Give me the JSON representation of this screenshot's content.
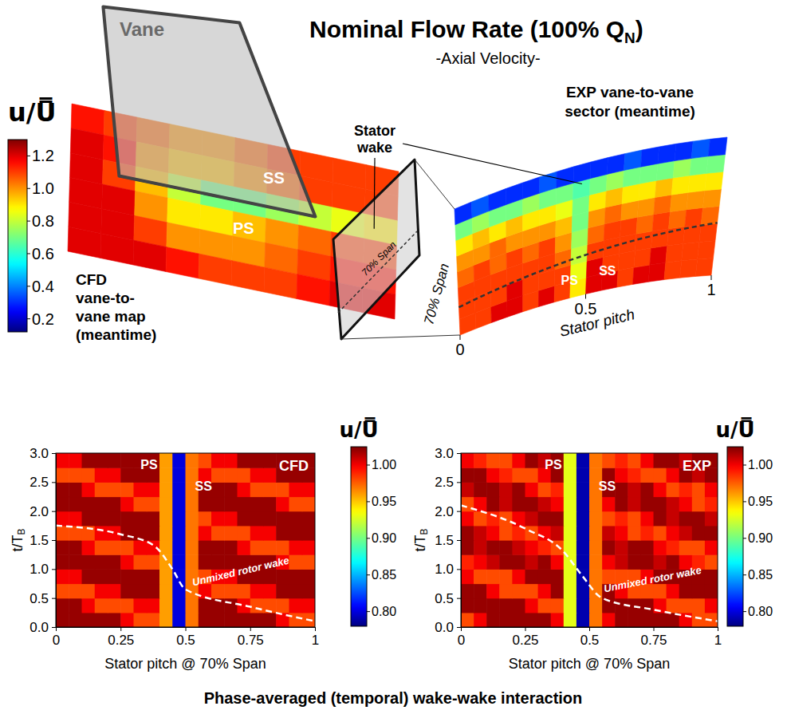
{
  "title": {
    "text": "Nominal Flow Rate (100% Q",
    "subscript": "N",
    "end": ")"
  },
  "subtitle": "-Axial Velocity-",
  "footer": "Phase-averaged (temporal) wake-wake interaction",
  "diagram": {
    "colorbar": {
      "label": "u/U̿",
      "range": [
        0.12,
        1.3
      ],
      "ticks": [
        0.2,
        0.4,
        0.6,
        0.8,
        {
          "value": 1,
          "label": "1.0"
        },
        1.2
      ]
    },
    "vane": "Vane",
    "ss": "SS",
    "ps": "PS",
    "cfd_map": {
      "label": [
        "CFD",
        "vane-to-",
        "vane map",
        "(meantime)"
      ],
      "z": [
        [
          1.15,
          1.1,
          1.05,
          1.0,
          1.0,
          1.05,
          1.1,
          1.1,
          1.1,
          1.1
        ],
        [
          1.2,
          1.15,
          1.0,
          0.95,
          0.95,
          1.0,
          1.05,
          1.1,
          1.1,
          1.1
        ],
        [
          1.2,
          1.1,
          0.95,
          0.8,
          0.7,
          0.7,
          0.75,
          0.8,
          0.85,
          0.9
        ],
        [
          1.2,
          1.2,
          1.0,
          0.9,
          0.9,
          0.95,
          1.0,
          1.05,
          1.1,
          1.1
        ],
        [
          1.2,
          1.2,
          1.1,
          1.0,
          1.0,
          1.0,
          1.05,
          1.1,
          1.15,
          1.15
        ],
        [
          1.2,
          1.2,
          1.2,
          1.15,
          1.1,
          1.1,
          1.1,
          1.15,
          1.2,
          1.2
        ]
      ]
    },
    "exit_plane_label": "70% Span",
    "stator_wake": [
      "Stator",
      "wake"
    ],
    "exp_sector": {
      "label": [
        "EXP vane-to-vane",
        "sector (meantime)"
      ],
      "pitch_ticks": [
        0,
        0.5,
        1
      ],
      "pitch_label": "Stator pitch",
      "span_label": "70% Span",
      "ps": "PS",
      "ss": "SS",
      "z": [
        [
          1.1,
          1.1,
          1.2,
          1.2,
          1.1,
          1.2,
          1.1,
          0.9,
          1.2,
          1.2,
          1.1,
          1.2,
          1.2,
          1.1,
          1.1,
          1.1
        ],
        [
          1.1,
          1.1,
          1.1,
          1.2,
          1.1,
          1.1,
          1.1,
          0.85,
          1.2,
          1.1,
          1.1,
          1.1,
          1.2,
          1.1,
          1.1,
          1.1
        ],
        [
          1.1,
          1.1,
          1.1,
          1.1,
          1.1,
          1.1,
          1.05,
          0.8,
          1.1,
          1.1,
          1.1,
          1.1,
          1.1,
          1.1,
          1.1,
          1.1
        ],
        [
          1.05,
          1.1,
          1.05,
          1.1,
          1.05,
          1.1,
          1.0,
          0.75,
          1.05,
          1.1,
          1.1,
          1.05,
          1.1,
          1.05,
          1.1,
          1.05
        ],
        [
          1.0,
          1.0,
          1.05,
          1.0,
          1.0,
          1.0,
          0.95,
          0.7,
          1.0,
          1.05,
          1.0,
          1.0,
          1.05,
          1.0,
          1.0,
          1.0
        ],
        [
          0.9,
          0.95,
          0.9,
          0.95,
          0.9,
          0.9,
          0.85,
          0.7,
          0.9,
          0.95,
          0.9,
          0.9,
          0.95,
          0.9,
          0.9,
          0.9
        ],
        [
          0.7,
          0.75,
          0.7,
          0.7,
          0.75,
          0.7,
          0.7,
          0.65,
          0.7,
          0.75,
          0.7,
          0.7,
          0.7,
          0.75,
          0.7,
          0.7
        ],
        [
          0.3,
          0.35,
          0.3,
          0.3,
          0.3,
          0.35,
          0.3,
          0.3,
          0.3,
          0.3,
          0.35,
          0.3,
          0.3,
          0.3,
          0.35,
          0.3
        ]
      ]
    }
  },
  "chart_data": [
    {
      "type": "heatmap",
      "title": "CFD",
      "xlabel": "Stator pitch @ 70% Span",
      "ylabel": {
        "text": "t/T",
        "subscript": "B"
      },
      "xlim": [
        0,
        1
      ],
      "ylim": [
        0,
        3
      ],
      "xticks": [
        0,
        0.25,
        0.5,
        0.75,
        1
      ],
      "yticks": [
        {
          "value": 0,
          "label": "0.0"
        },
        0.5,
        {
          "value": 1,
          "label": "1.0"
        },
        1.5,
        {
          "value": 2,
          "label": "2.0"
        },
        2.5,
        {
          "value": 3,
          "label": "3.0"
        }
      ],
      "labels": [
        "PS",
        "SS"
      ],
      "x": [
        0.025,
        0.075,
        0.125,
        0.175,
        0.225,
        0.275,
        0.325,
        0.375,
        0.425,
        0.475,
        0.525,
        0.575,
        0.625,
        0.675,
        0.725,
        0.775,
        0.825,
        0.875,
        0.925,
        0.975
      ],
      "y": [
        0.125,
        0.375,
        0.625,
        0.875,
        1.125,
        1.375,
        1.625,
        1.875,
        2.125,
        2.375,
        2.625,
        2.875
      ],
      "z": [
        [
          1.02,
          1.02,
          1.02,
          1.02,
          1.02,
          1.0,
          0.98,
          0.98,
          0.96,
          0.8,
          0.97,
          1.02,
          1.02,
          1.02,
          1.02,
          1.02,
          1.02,
          1.0,
          0.98,
          0.98
        ],
        [
          1.02,
          1.02,
          1.0,
          0.98,
          0.98,
          0.98,
          1.0,
          1.0,
          0.96,
          0.8,
          0.97,
          1.02,
          1.02,
          1.02,
          1.0,
          0.98,
          0.98,
          0.98,
          1.0,
          1.0
        ],
        [
          0.98,
          0.98,
          0.98,
          1.0,
          1.0,
          1.02,
          1.02,
          1.02,
          0.96,
          0.8,
          0.97,
          1.0,
          0.98,
          0.98,
          0.98,
          1.0,
          1.0,
          1.02,
          1.02,
          1.02
        ],
        [
          1.0,
          1.0,
          1.02,
          1.02,
          1.02,
          1.02,
          1.02,
          1.02,
          0.96,
          0.8,
          0.97,
          0.98,
          1.0,
          1.0,
          1.02,
          1.02,
          1.02,
          1.02,
          1.02,
          1.02
        ],
        [
          1.02,
          1.02,
          1.02,
          1.02,
          1.02,
          1.0,
          0.98,
          0.98,
          0.96,
          0.8,
          0.97,
          1.02,
          1.02,
          1.02,
          1.02,
          1.02,
          1.02,
          1.0,
          0.98,
          0.98
        ],
        [
          1.02,
          1.02,
          1.0,
          0.98,
          0.98,
          0.98,
          1.0,
          1.0,
          0.96,
          0.8,
          0.97,
          1.02,
          1.02,
          1.02,
          1.0,
          0.98,
          0.98,
          0.98,
          1.0,
          1.0
        ],
        [
          0.98,
          0.98,
          0.98,
          1.0,
          1.0,
          1.02,
          1.02,
          1.02,
          0.96,
          0.8,
          0.97,
          1.0,
          0.98,
          0.98,
          0.98,
          1.0,
          1.0,
          1.02,
          1.02,
          1.02
        ],
        [
          1.0,
          1.0,
          1.02,
          1.02,
          1.02,
          1.02,
          1.02,
          1.02,
          0.96,
          0.8,
          0.97,
          0.98,
          1.0,
          1.0,
          1.02,
          1.02,
          1.02,
          1.02,
          1.02,
          1.02
        ],
        [
          1.02,
          1.02,
          1.02,
          1.02,
          1.02,
          1.0,
          0.98,
          0.98,
          0.96,
          0.8,
          0.97,
          1.02,
          1.02,
          1.02,
          1.02,
          1.02,
          1.02,
          1.0,
          0.98,
          0.98
        ],
        [
          1.02,
          1.02,
          1.0,
          0.98,
          0.98,
          0.98,
          1.0,
          1.0,
          0.96,
          0.8,
          0.97,
          1.02,
          1.02,
          1.02,
          1.0,
          0.98,
          0.98,
          0.98,
          1.0,
          1.0
        ],
        [
          0.98,
          0.98,
          0.98,
          1.0,
          1.0,
          1.02,
          1.02,
          1.02,
          0.96,
          0.8,
          0.97,
          1.0,
          0.98,
          0.98,
          0.98,
          1.0,
          1.0,
          1.02,
          1.02,
          1.02
        ],
        [
          1.0,
          1.0,
          1.02,
          1.02,
          1.02,
          1.02,
          1.02,
          1.02,
          0.96,
          0.8,
          0.97,
          0.98,
          1.0,
          1.0,
          1.02,
          1.02,
          1.02,
          1.02,
          1.02,
          1.02
        ]
      ],
      "colorbar": {
        "label": "u/U̿",
        "range": [
          0.78,
          1.025
        ],
        "ticks": [
          {
            "value": 0.8,
            "label": "0.80"
          },
          0.85,
          {
            "value": 0.9,
            "label": "0.90"
          },
          0.95,
          {
            "value": 1,
            "label": "1.00"
          }
        ]
      },
      "rotor_wake": {
        "label": "Unmixed rotor wake",
        "x": [
          0,
          0.25,
          0.38,
          0.45,
          0.5,
          0.75,
          1
        ],
        "y": [
          1.75,
          1.6,
          1.4,
          1.0,
          0.65,
          0.35,
          0.1
        ]
      }
    },
    {
      "type": "heatmap",
      "title": "EXP",
      "xlabel": "Stator pitch @ 70% Span",
      "ylabel": {
        "text": "t/T",
        "subscript": "B"
      },
      "xlim": [
        0,
        1
      ],
      "ylim": [
        0,
        3
      ],
      "xticks": [
        0,
        0.25,
        0.5,
        0.75,
        1
      ],
      "yticks": [
        {
          "value": 0,
          "label": "0.0"
        },
        0.5,
        {
          "value": 1,
          "label": "1.0"
        },
        1.5,
        {
          "value": 2,
          "label": "2.0"
        },
        2.5,
        {
          "value": 3,
          "label": "3.0"
        }
      ],
      "labels": [
        "PS",
        "SS"
      ],
      "x": [
        0.025,
        0.075,
        0.125,
        0.175,
        0.225,
        0.275,
        0.325,
        0.375,
        0.425,
        0.475,
        0.525,
        0.575,
        0.625,
        0.675,
        0.725,
        0.775,
        0.825,
        0.875,
        0.925,
        0.975
      ],
      "y": [
        0.125,
        0.375,
        0.625,
        0.875,
        1.125,
        1.375,
        1.625,
        1.875,
        2.125,
        2.375,
        2.625,
        2.875
      ],
      "z": [
        [
          0.98,
          1.0,
          1.02,
          1.02,
          1.02,
          1.02,
          1.02,
          1.0,
          0.93,
          0.79,
          0.97,
          1.0,
          1.02,
          1.02,
          1.02,
          1.02,
          1.02,
          1.0,
          0.98,
          0.98
        ],
        [
          1.02,
          1.02,
          1.02,
          1.02,
          1.02,
          1.0,
          0.98,
          0.98,
          0.93,
          0.79,
          0.97,
          1.02,
          1.02,
          1.02,
          1.02,
          1.0,
          0.98,
          0.98,
          0.98,
          1.0
        ],
        [
          1.02,
          1.02,
          1.0,
          0.98,
          0.98,
          0.98,
          1.0,
          1.02,
          0.93,
          0.79,
          0.97,
          1.02,
          1.0,
          0.98,
          0.98,
          0.98,
          1.0,
          1.02,
          1.02,
          1.02
        ],
        [
          1.0,
          0.98,
          0.98,
          0.98,
          1.0,
          1.02,
          1.02,
          1.02,
          0.93,
          0.79,
          0.97,
          0.98,
          0.98,
          0.98,
          1.0,
          1.02,
          1.02,
          1.02,
          1.02,
          1.02
        ],
        [
          0.99,
          1.0,
          1.01,
          1.02,
          1.02,
          1.01,
          1.02,
          1.0,
          0.93,
          0.79,
          0.97,
          1.0,
          1.01,
          1.02,
          1.02,
          1.01,
          1.02,
          1.0,
          0.99,
          0.98
        ],
        [
          1.02,
          1.01,
          1.02,
          1.02,
          1.01,
          1.0,
          0.99,
          0.98,
          0.93,
          0.79,
          0.97,
          1.02,
          1.01,
          1.02,
          1.02,
          1.0,
          0.99,
          0.98,
          0.98,
          1.0
        ],
        [
          1.02,
          1.01,
          1.0,
          0.98,
          0.99,
          0.98,
          1.0,
          1.01,
          0.93,
          0.79,
          0.97,
          1.01,
          1.0,
          0.98,
          0.99,
          0.98,
          1.0,
          1.01,
          1.02,
          1.02
        ],
        [
          1.0,
          0.98,
          0.99,
          0.98,
          1.0,
          1.01,
          1.02,
          1.02,
          0.93,
          0.79,
          0.97,
          0.98,
          0.99,
          0.98,
          1.0,
          1.02,
          1.01,
          1.02,
          1.02,
          1.01
        ],
        [
          0.98,
          1.0,
          1.02,
          1.01,
          1.02,
          1.02,
          1.01,
          1.0,
          0.93,
          0.79,
          0.97,
          1.0,
          1.02,
          1.01,
          1.02,
          1.02,
          1.01,
          1.0,
          0.98,
          0.99
        ],
        [
          1.01,
          1.02,
          1.02,
          1.01,
          1.02,
          1.0,
          0.98,
          0.99,
          0.93,
          0.79,
          0.97,
          1.02,
          1.02,
          1.01,
          1.02,
          1.0,
          0.98,
          0.99,
          0.98,
          1.0
        ],
        [
          1.02,
          1.02,
          1.0,
          0.99,
          0.98,
          0.98,
          1.0,
          1.02,
          0.93,
          0.79,
          0.97,
          1.02,
          1.0,
          0.99,
          0.98,
          0.98,
          1.0,
          1.02,
          1.01,
          1.02
        ],
        [
          1.0,
          0.99,
          0.98,
          0.98,
          1.0,
          1.02,
          1.01,
          1.02,
          0.93,
          0.79,
          0.97,
          0.98,
          0.99,
          0.98,
          1.0,
          1.02,
          1.02,
          1.01,
          1.02,
          1.02
        ]
      ],
      "colorbar": {
        "label": "u/U̿",
        "range": [
          0.78,
          1.025
        ],
        "ticks": [
          {
            "value": 0.8,
            "label": "0.80"
          },
          0.85,
          {
            "value": 0.9,
            "label": "0.90"
          },
          0.95,
          {
            "value": 1,
            "label": "1.00"
          }
        ]
      },
      "rotor_wake": {
        "label": "Unmixed rotor wake",
        "x": [
          0,
          0.25,
          0.4,
          0.47,
          0.55,
          0.75,
          1
        ],
        "y": [
          2.1,
          1.7,
          1.3,
          0.9,
          0.5,
          0.3,
          0.1
        ]
      }
    }
  ]
}
